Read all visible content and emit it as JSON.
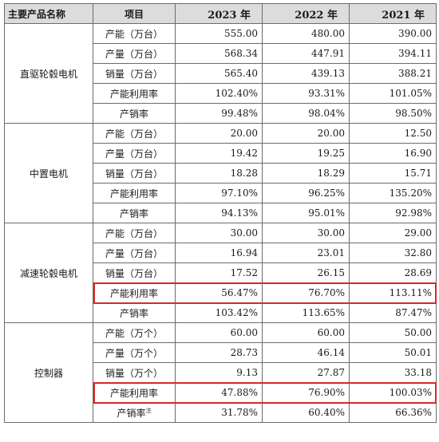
{
  "table": {
    "headers": [
      "主要产品名称",
      "项目",
      "2023 年",
      "2022 年",
      "2021 年"
    ],
    "groups": [
      {
        "product": "直驱轮毂电机",
        "rows": [
          {
            "item": "产能（万台）",
            "v": [
              "555.00",
              "480.00",
              "390.00"
            ]
          },
          {
            "item": "产量（万台）",
            "v": [
              "568.34",
              "447.91",
              "394.11"
            ]
          },
          {
            "item": "销量（万台）",
            "v": [
              "565.40",
              "439.13",
              "388.21"
            ]
          },
          {
            "item": "产能利用率",
            "v": [
              "102.40%",
              "93.31%",
              "101.05%"
            ]
          },
          {
            "item": "产销率",
            "v": [
              "99.48%",
              "98.04%",
              "98.50%"
            ]
          }
        ]
      },
      {
        "product": "中置电机",
        "rows": [
          {
            "item": "产能（万台）",
            "v": [
              "20.00",
              "20.00",
              "12.50"
            ]
          },
          {
            "item": "产量（万台）",
            "v": [
              "19.42",
              "19.25",
              "16.90"
            ]
          },
          {
            "item": "销量（万台）",
            "v": [
              "18.28",
              "18.29",
              "15.71"
            ]
          },
          {
            "item": "产能利用率",
            "v": [
              "97.10%",
              "96.25%",
              "135.20%"
            ]
          },
          {
            "item": "产销率",
            "v": [
              "94.13%",
              "95.01%",
              "92.98%"
            ]
          }
        ]
      },
      {
        "product": "减速轮毂电机",
        "rows": [
          {
            "item": "产能（万台）",
            "v": [
              "30.00",
              "30.00",
              "29.00"
            ]
          },
          {
            "item": "产量（万台）",
            "v": [
              "16.94",
              "23.01",
              "32.80"
            ]
          },
          {
            "item": "销量（万台）",
            "v": [
              "17.52",
              "26.15",
              "28.69"
            ]
          },
          {
            "item": "产能利用率",
            "v": [
              "56.47%",
              "76.70%",
              "113.11%"
            ],
            "highlight": true
          },
          {
            "item": "产销率",
            "v": [
              "103.42%",
              "113.65%",
              "87.47%"
            ]
          }
        ]
      },
      {
        "product": "控制器",
        "rows": [
          {
            "item": "产能（万个）",
            "v": [
              "60.00",
              "60.00",
              "50.00"
            ]
          },
          {
            "item": "产量（万个）",
            "v": [
              "28.73",
              "46.14",
              "50.01"
            ]
          },
          {
            "item": "销量（万个）",
            "v": [
              "9.13",
              "27.87",
              "33.18"
            ]
          },
          {
            "item": "产能利用率",
            "v": [
              "47.88%",
              "76.90%",
              "100.03%"
            ],
            "highlight": true
          },
          {
            "item": "产销率",
            "note": "注",
            "v": [
              "31.78%",
              "60.40%",
              "66.36%"
            ]
          }
        ]
      }
    ]
  },
  "highlight_color": "#d22a2a"
}
